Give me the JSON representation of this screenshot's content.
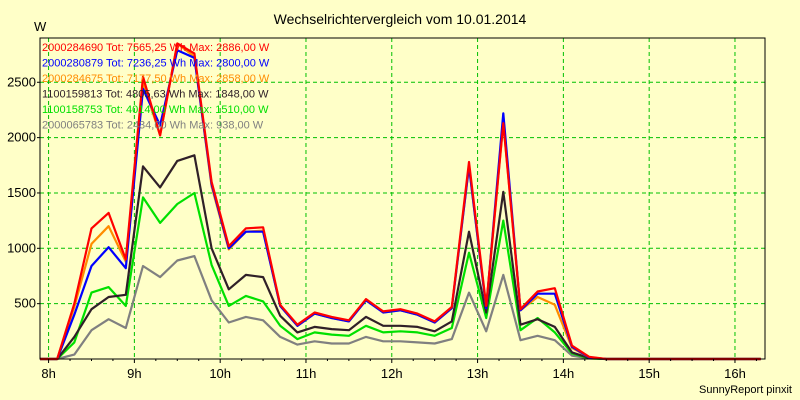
{
  "chart_data": {
    "type": "line",
    "title": "Wechselrichtervergleich vom 10.01.2014",
    "ylabel": "W",
    "xlabel": "",
    "footer": "SunnyReport pinxit",
    "ylim": [
      0,
      2900
    ],
    "xlim": [
      7.9,
      16.35
    ],
    "yticks": [
      500,
      1000,
      1500,
      2000,
      2500
    ],
    "ytick_labels": [
      "500",
      "1000",
      "1500",
      "2000",
      "2500"
    ],
    "xticks": [
      8,
      9,
      10,
      11,
      12,
      13,
      14,
      15,
      16
    ],
    "xtick_labels": [
      "8h",
      "9h",
      "10h",
      "11h",
      "12h",
      "13h",
      "14h",
      "15h",
      "16h"
    ],
    "grid": true,
    "legend_position": "top-left",
    "x": [
      7.9,
      8.1,
      8.3,
      8.5,
      8.7,
      8.9,
      9.1,
      9.3,
      9.5,
      9.7,
      9.9,
      10.1,
      10.3,
      10.5,
      10.7,
      10.9,
      11.1,
      11.3,
      11.5,
      11.7,
      11.9,
      12.1,
      12.3,
      12.5,
      12.7,
      12.9,
      13.1,
      13.3,
      13.5,
      13.7,
      13.9,
      14.1,
      14.3,
      14.5,
      14.7,
      14.9,
      15.1,
      15.3,
      15.5,
      15.7,
      15.9,
      16.1,
      16.3
    ],
    "series": [
      {
        "name": "2000284690 Tot: 7565,25 Wh Max: 2886,00 W",
        "color": "#ff0000",
        "values": [
          0,
          0,
          500,
          1180,
          1320,
          900,
          2550,
          2020,
          2850,
          2760,
          1600,
          1020,
          1180,
          1190,
          490,
          310,
          420,
          380,
          350,
          540,
          430,
          450,
          410,
          340,
          470,
          1780,
          480,
          2130,
          450,
          610,
          640,
          120,
          20,
          0,
          0,
          0,
          0,
          0,
          0,
          0,
          0,
          0,
          0
        ]
      },
      {
        "name": "2000280879 Tot: 7236,25 Wh Max: 2800,00 W",
        "color": "#0000ff",
        "values": [
          0,
          0,
          400,
          840,
          1010,
          820,
          2440,
          2110,
          2790,
          2720,
          1580,
          1000,
          1150,
          1150,
          480,
          300,
          410,
          370,
          340,
          530,
          420,
          440,
          400,
          330,
          460,
          1740,
          460,
          2220,
          440,
          590,
          590,
          110,
          15,
          0,
          0,
          0,
          0,
          0,
          0,
          0,
          0,
          0,
          0
        ]
      },
      {
        "name": "2000284675 Tot: 7177,50 Wh Max: 2858,00 W",
        "color": "#ff8c00",
        "values": [
          0,
          0,
          470,
          1040,
          1200,
          880,
          2500,
          2020,
          2850,
          2730,
          1560,
          990,
          1150,
          1160,
          480,
          300,
          410,
          370,
          340,
          540,
          420,
          440,
          400,
          330,
          460,
          1740,
          460,
          2140,
          440,
          560,
          490,
          100,
          15,
          0,
          0,
          0,
          0,
          0,
          0,
          0,
          0,
          0,
          0
        ]
      },
      {
        "name": "1100159813 Tot: 4805,63 Wh Max: 1848,00 W",
        "color": "#302028",
        "values": [
          0,
          0,
          200,
          450,
          560,
          580,
          1740,
          1550,
          1790,
          1840,
          1000,
          630,
          760,
          740,
          390,
          240,
          290,
          270,
          260,
          380,
          300,
          300,
          290,
          250,
          340,
          1150,
          420,
          1510,
          310,
          360,
          290,
          60,
          10,
          0,
          0,
          0,
          0,
          0,
          0,
          0,
          0,
          0,
          0
        ]
      },
      {
        "name": "1100158753 Tot: 4014,00 Wh Max: 1510,00 W",
        "color": "#00e000",
        "values": [
          0,
          0,
          150,
          600,
          650,
          480,
          1460,
          1230,
          1400,
          1500,
          850,
          480,
          570,
          520,
          300,
          180,
          240,
          220,
          210,
          300,
          240,
          250,
          240,
          210,
          280,
          960,
          370,
          1250,
          260,
          370,
          240,
          50,
          5,
          0,
          0,
          0,
          0,
          0,
          0,
          0,
          0,
          0,
          0
        ]
      },
      {
        "name": "2000065783 Tot: 2434,00 Wh Max: 938,00 W",
        "color": "#808080",
        "values": [
          0,
          0,
          40,
          260,
          360,
          280,
          840,
          740,
          890,
          930,
          530,
          330,
          380,
          350,
          200,
          130,
          160,
          140,
          140,
          200,
          160,
          160,
          150,
          140,
          180,
          600,
          250,
          760,
          170,
          210,
          170,
          30,
          5,
          0,
          0,
          0,
          0,
          0,
          0,
          0,
          0,
          0,
          0
        ]
      }
    ]
  }
}
